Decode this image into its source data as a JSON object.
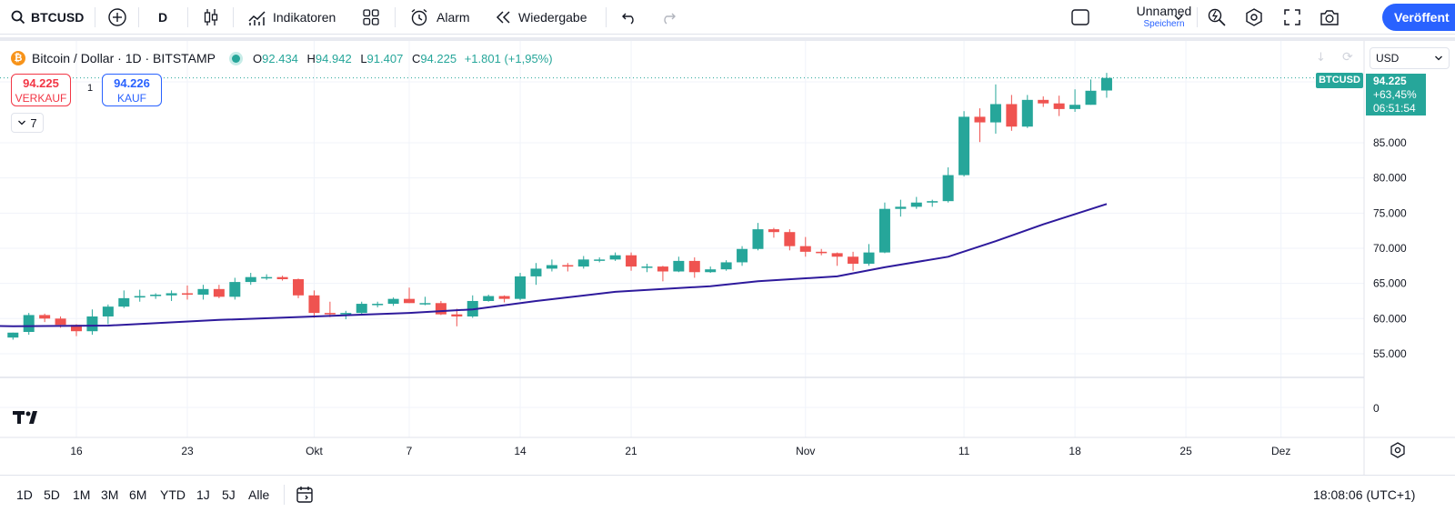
{
  "toolbar": {
    "symbol": "BTCUSD",
    "interval": "D",
    "indicators_label": "Indikatoren",
    "alert_label": "Alarm",
    "replay_label": "Wiedergabe",
    "layout_name": "Unnamed",
    "layout_status": "Speichern",
    "publish_label": "Veröffent"
  },
  "legend": {
    "title": "Bitcoin / Dollar · 1D · BITSTAMP",
    "open_key": "O",
    "open": "92.434",
    "high_key": "H",
    "high": "94.942",
    "low_key": "L",
    "low": "91.407",
    "close_key": "C",
    "close": "94.225",
    "change": "+1.801 (+1,95%)"
  },
  "trade": {
    "sell_price": "94.225",
    "sell_label": "VERKAUF",
    "spread": "1",
    "buy_price": "94.226",
    "buy_label": "KAUF",
    "collapsed_count": "7"
  },
  "price_scale": {
    "currency": "USD",
    "symbol_tag": "BTCUSD",
    "last_price": "94.225",
    "last_change": "+63,45%",
    "countdown": "06:51:54",
    "ticks": [
      "85.000",
      "80.000",
      "75.000",
      "70.000",
      "65.000",
      "60.000",
      "55.000"
    ],
    "indicator_tick": "0"
  },
  "time_scale": {
    "labels": [
      "16",
      "23",
      "Okt",
      "7",
      "14",
      "21",
      "Nov",
      "11",
      "18",
      "25",
      "Dez"
    ]
  },
  "bottom": {
    "ranges": [
      "1D",
      "5D",
      "1M",
      "3M",
      "6M",
      "YTD",
      "1J",
      "5J",
      "Alle"
    ],
    "clock": "18:08:06 (UTC+1)"
  },
  "colors": {
    "up": "#26a69a",
    "down": "#ef5350",
    "ma": "#2e1a9c",
    "accent": "#2962ff"
  },
  "chart_data": {
    "type": "candlestick",
    "interval": "1D",
    "price_axis": {
      "min": 50000,
      "max": 95000
    },
    "candles": [
      {
        "date": "2024-09-12",
        "o": 57300,
        "h": 58000,
        "l": 57000,
        "c": 58000
      },
      {
        "date": "2024-09-13",
        "o": 58100,
        "h": 60800,
        "l": 57700,
        "c": 60500
      },
      {
        "date": "2024-09-14",
        "o": 60500,
        "h": 60700,
        "l": 59500,
        "c": 60000
      },
      {
        "date": "2024-09-15",
        "o": 60000,
        "h": 60300,
        "l": 58700,
        "c": 59100
      },
      {
        "date": "2024-09-16",
        "o": 59100,
        "h": 59200,
        "l": 57500,
        "c": 58200
      },
      {
        "date": "2024-09-17",
        "o": 58200,
        "h": 61300,
        "l": 57700,
        "c": 60300
      },
      {
        "date": "2024-09-18",
        "o": 60300,
        "h": 62000,
        "l": 59200,
        "c": 61700
      },
      {
        "date": "2024-09-19",
        "o": 61700,
        "h": 64000,
        "l": 61500,
        "c": 62900
      },
      {
        "date": "2024-09-20",
        "o": 63000,
        "h": 64100,
        "l": 62400,
        "c": 63200
      },
      {
        "date": "2024-09-21",
        "o": 63200,
        "h": 63600,
        "l": 62800,
        "c": 63400
      },
      {
        "date": "2024-09-22",
        "o": 63300,
        "h": 64000,
        "l": 62500,
        "c": 63600
      },
      {
        "date": "2024-09-23",
        "o": 63600,
        "h": 64700,
        "l": 62700,
        "c": 63400
      },
      {
        "date": "2024-09-24",
        "o": 63400,
        "h": 64800,
        "l": 62700,
        "c": 64200
      },
      {
        "date": "2024-09-25",
        "o": 64200,
        "h": 64800,
        "l": 62900,
        "c": 63100
      },
      {
        "date": "2024-09-26",
        "o": 63100,
        "h": 65800,
        "l": 62700,
        "c": 65200
      },
      {
        "date": "2024-09-27",
        "o": 65200,
        "h": 66500,
        "l": 64800,
        "c": 65900
      },
      {
        "date": "2024-09-28",
        "o": 65900,
        "h": 66300,
        "l": 65500,
        "c": 65900
      },
      {
        "date": "2024-09-29",
        "o": 65900,
        "h": 66100,
        "l": 65400,
        "c": 65600
      },
      {
        "date": "2024-09-30",
        "o": 65600,
        "h": 65700,
        "l": 62900,
        "c": 63300
      },
      {
        "date": "2024-10-01",
        "o": 63300,
        "h": 64000,
        "l": 60100,
        "c": 60800
      },
      {
        "date": "2024-10-02",
        "o": 60800,
        "h": 62400,
        "l": 60200,
        "c": 60600
      },
      {
        "date": "2024-10-03",
        "o": 60600,
        "h": 61100,
        "l": 59900,
        "c": 60800
      },
      {
        "date": "2024-10-04",
        "o": 60800,
        "h": 62400,
        "l": 60500,
        "c": 62100
      },
      {
        "date": "2024-10-05",
        "o": 62100,
        "h": 62400,
        "l": 61600,
        "c": 62100
      },
      {
        "date": "2024-10-06",
        "o": 62100,
        "h": 63000,
        "l": 61800,
        "c": 62800
      },
      {
        "date": "2024-10-07",
        "o": 62800,
        "h": 64400,
        "l": 62200,
        "c": 62200
      },
      {
        "date": "2024-10-08",
        "o": 62200,
        "h": 63100,
        "l": 61900,
        "c": 62200
      },
      {
        "date": "2024-10-09",
        "o": 62200,
        "h": 62500,
        "l": 60500,
        "c": 60600
      },
      {
        "date": "2024-10-10",
        "o": 60600,
        "h": 61400,
        "l": 58900,
        "c": 60300
      },
      {
        "date": "2024-10-11",
        "o": 60300,
        "h": 63300,
        "l": 60100,
        "c": 62500
      },
      {
        "date": "2024-10-12",
        "o": 62500,
        "h": 63400,
        "l": 62400,
        "c": 63200
      },
      {
        "date": "2024-10-13",
        "o": 63200,
        "h": 63300,
        "l": 62300,
        "c": 62800
      },
      {
        "date": "2024-10-14",
        "o": 62800,
        "h": 66500,
        "l": 62600,
        "c": 66000
      },
      {
        "date": "2024-10-15",
        "o": 66000,
        "h": 67900,
        "l": 64800,
        "c": 67100
      },
      {
        "date": "2024-10-16",
        "o": 67100,
        "h": 68400,
        "l": 66700,
        "c": 67600
      },
      {
        "date": "2024-10-17",
        "o": 67600,
        "h": 67900,
        "l": 66700,
        "c": 67400
      },
      {
        "date": "2024-10-18",
        "o": 67400,
        "h": 68900,
        "l": 67100,
        "c": 68400
      },
      {
        "date": "2024-10-19",
        "o": 68400,
        "h": 68700,
        "l": 68000,
        "c": 68400
      },
      {
        "date": "2024-10-20",
        "o": 68400,
        "h": 69400,
        "l": 68200,
        "c": 69000
      },
      {
        "date": "2024-10-21",
        "o": 69000,
        "h": 69400,
        "l": 66800,
        "c": 67400
      },
      {
        "date": "2024-10-22",
        "o": 67400,
        "h": 67800,
        "l": 66600,
        "c": 67400
      },
      {
        "date": "2024-10-23",
        "o": 67400,
        "h": 67500,
        "l": 65300,
        "c": 66700
      },
      {
        "date": "2024-10-24",
        "o": 66700,
        "h": 68800,
        "l": 66600,
        "c": 68200
      },
      {
        "date": "2024-10-25",
        "o": 68200,
        "h": 68700,
        "l": 65800,
        "c": 66600
      },
      {
        "date": "2024-10-26",
        "o": 66600,
        "h": 67400,
        "l": 66500,
        "c": 67000
      },
      {
        "date": "2024-10-27",
        "o": 67000,
        "h": 68300,
        "l": 66800,
        "c": 68000
      },
      {
        "date": "2024-10-28",
        "o": 68000,
        "h": 70300,
        "l": 67500,
        "c": 69900
      },
      {
        "date": "2024-10-29",
        "o": 69900,
        "h": 73600,
        "l": 69700,
        "c": 72700
      },
      {
        "date": "2024-10-30",
        "o": 72700,
        "h": 72900,
        "l": 71500,
        "c": 72300
      },
      {
        "date": "2024-10-31",
        "o": 72300,
        "h": 72700,
        "l": 69700,
        "c": 70300
      },
      {
        "date": "2024-11-01",
        "o": 70300,
        "h": 71600,
        "l": 68800,
        "c": 69500
      },
      {
        "date": "2024-11-02",
        "o": 69500,
        "h": 69900,
        "l": 69000,
        "c": 69300
      },
      {
        "date": "2024-11-03",
        "o": 69300,
        "h": 69400,
        "l": 67500,
        "c": 68800
      },
      {
        "date": "2024-11-04",
        "o": 68800,
        "h": 69500,
        "l": 66800,
        "c": 67800
      },
      {
        "date": "2024-11-05",
        "o": 67800,
        "h": 70600,
        "l": 67500,
        "c": 69400
      },
      {
        "date": "2024-11-06",
        "o": 69400,
        "h": 76500,
        "l": 69300,
        "c": 75600
      },
      {
        "date": "2024-11-07",
        "o": 75600,
        "h": 76900,
        "l": 74500,
        "c": 75900
      },
      {
        "date": "2024-11-08",
        "o": 75900,
        "h": 77300,
        "l": 75600,
        "c": 76500
      },
      {
        "date": "2024-11-09",
        "o": 76500,
        "h": 76900,
        "l": 75900,
        "c": 76700
      },
      {
        "date": "2024-11-10",
        "o": 76700,
        "h": 81500,
        "l": 76500,
        "c": 80400
      },
      {
        "date": "2024-11-11",
        "o": 80400,
        "h": 89500,
        "l": 80200,
        "c": 88700
      },
      {
        "date": "2024-11-12",
        "o": 88700,
        "h": 89900,
        "l": 85100,
        "c": 87900
      },
      {
        "date": "2024-11-13",
        "o": 87900,
        "h": 93300,
        "l": 86300,
        "c": 90500
      },
      {
        "date": "2024-11-14",
        "o": 90500,
        "h": 91800,
        "l": 86700,
        "c": 87300
      },
      {
        "date": "2024-11-15",
        "o": 87300,
        "h": 91800,
        "l": 87100,
        "c": 91100
      },
      {
        "date": "2024-11-16",
        "o": 91100,
        "h": 91600,
        "l": 90100,
        "c": 90600
      },
      {
        "date": "2024-11-17",
        "o": 90600,
        "h": 91700,
        "l": 88800,
        "c": 89800
      },
      {
        "date": "2024-11-18",
        "o": 89800,
        "h": 92600,
        "l": 89400,
        "c": 90400
      },
      {
        "date": "2024-11-19",
        "o": 90400,
        "h": 94000,
        "l": 90400,
        "c": 92400
      },
      {
        "date": "2024-11-20",
        "o": 92434,
        "h": 94942,
        "l": 91407,
        "c": 94225
      }
    ],
    "moving_average": [
      {
        "date": "2024-09-06",
        "v": 59200
      },
      {
        "date": "2024-09-12",
        "v": 58900
      },
      {
        "date": "2024-09-18",
        "v": 59000
      },
      {
        "date": "2024-09-25",
        "v": 59800
      },
      {
        "date": "2024-10-01",
        "v": 60300
      },
      {
        "date": "2024-10-07",
        "v": 60800
      },
      {
        "date": "2024-10-11",
        "v": 61300
      },
      {
        "date": "2024-10-15",
        "v": 62500
      },
      {
        "date": "2024-10-20",
        "v": 63800
      },
      {
        "date": "2024-10-26",
        "v": 64600
      },
      {
        "date": "2024-10-29",
        "v": 65300
      },
      {
        "date": "2024-11-03",
        "v": 66000
      },
      {
        "date": "2024-11-06",
        "v": 67300
      },
      {
        "date": "2024-11-10",
        "v": 68800
      },
      {
        "date": "2024-11-13",
        "v": 71000
      },
      {
        "date": "2024-11-16",
        "v": 73400
      },
      {
        "date": "2024-11-20",
        "v": 76300
      }
    ]
  }
}
